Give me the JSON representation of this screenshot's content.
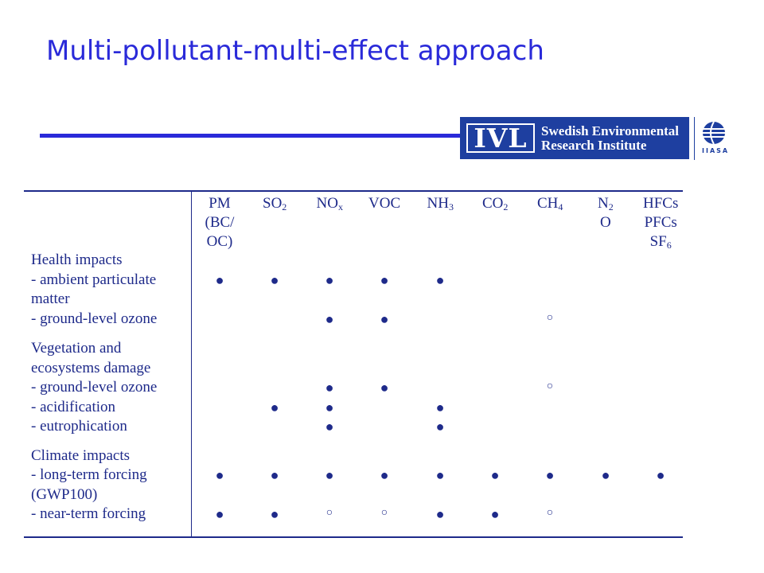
{
  "title": "Multi-pollutant-multi-effect approach",
  "logos": {
    "ivl_mark": "IVL",
    "ivl_line1": "Swedish Environmental",
    "ivl_line2": "Research Institute",
    "iiasa": "IIASA"
  },
  "columns": [
    {
      "id": "pm",
      "lines": [
        "PM",
        "(BC/",
        "OC)"
      ]
    },
    {
      "id": "so2",
      "lines": [
        [
          "SO",
          "2"
        ]
      ]
    },
    {
      "id": "nox",
      "lines": [
        [
          "NO",
          "x"
        ]
      ]
    },
    {
      "id": "voc",
      "lines": [
        "VOC"
      ]
    },
    {
      "id": "nh3",
      "lines": [
        [
          "NH",
          "3"
        ]
      ]
    },
    {
      "id": "co2",
      "lines": [
        [
          "CO",
          "2"
        ]
      ]
    },
    {
      "id": "ch4",
      "lines": [
        [
          "CH",
          "4"
        ]
      ]
    },
    {
      "id": "n2o",
      "lines": [
        [
          "N",
          "2"
        ],
        "O"
      ]
    },
    {
      "id": "hfcs",
      "lines": [
        "HFCs",
        "PFCs",
        [
          "SF",
          "6"
        ]
      ]
    }
  ],
  "rows": [
    {
      "label": "Health impacts",
      "marks": []
    },
    {
      "label": "- ambient particulate",
      "marks": [
        0,
        1,
        2,
        3,
        4
      ]
    },
    {
      "label": "matter",
      "marks": []
    },
    {
      "label": "- ground-level ozone",
      "marks": [
        2,
        3
      ],
      "open_marks": [
        6
      ]
    },
    {
      "label": "Vegetation and",
      "marks": []
    },
    {
      "label": "ecosystems damage",
      "marks": []
    },
    {
      "label": "- ground-level ozone",
      "marks": [
        2,
        3
      ],
      "open_marks": [
        6
      ]
    },
    {
      "label": "- acidification",
      "marks": [
        1,
        2,
        4
      ]
    },
    {
      "label": "- eutrophication",
      "marks": [
        2,
        4
      ]
    },
    {
      "label": "Climate impacts",
      "marks": []
    },
    {
      "label": "- long-term forcing",
      "marks": [
        0,
        1,
        2,
        3,
        4,
        5,
        6,
        7,
        8
      ]
    },
    {
      "label": "(GWP100)",
      "marks": []
    },
    {
      "label": "- near-term forcing",
      "marks": [
        0,
        1,
        4,
        5
      ],
      "open_marks": [
        2,
        3,
        6
      ]
    }
  ],
  "symbols": {
    "filled": "●",
    "open": "○"
  },
  "colors": {
    "title": "#2a2ad9",
    "text": "#1e2a8a",
    "logo_bg": "#1e3fa0"
  }
}
